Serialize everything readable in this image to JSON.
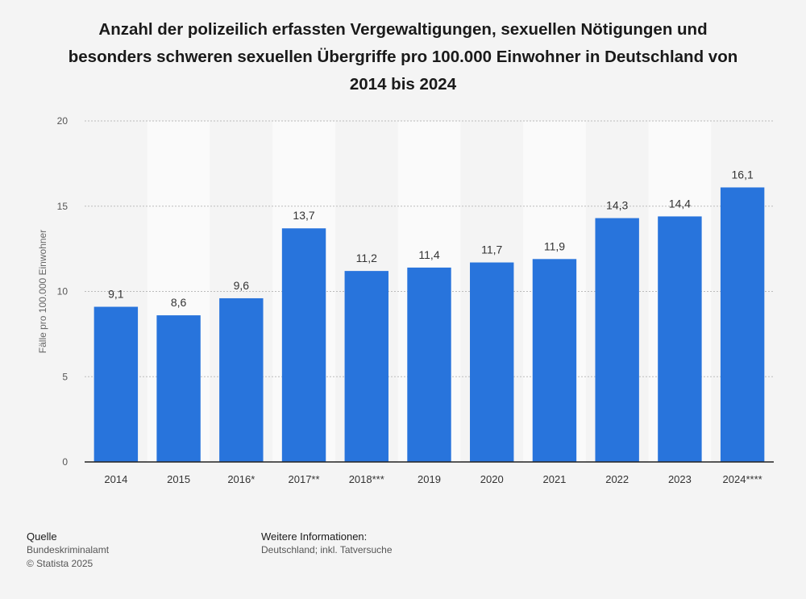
{
  "title_lines": [
    "Anzahl der polizeilich erfassten Vergewaltigungen, sexuellen Nötigungen und",
    "besonders schweren sexuellen Übergriffe pro 100.000 Einwohner in Deutschland von",
    "2014 bis 2024"
  ],
  "colors": {
    "bar": "#2874dc",
    "background": "#f4f4f4",
    "band": "#fafafa",
    "grid": "#bbbbbb"
  },
  "chart_data": {
    "type": "bar",
    "title": "Anzahl der polizeilich erfassten Vergewaltigungen, sexuellen Nötigungen und besonders schweren sexuellen Übergriffe pro 100.000 Einwohner in Deutschland von 2014 bis 2024",
    "categories": [
      "2014",
      "2015",
      "2016*",
      "2017**",
      "2018***",
      "2019",
      "2020",
      "2021",
      "2022",
      "2023",
      "2024****"
    ],
    "values": [
      9.1,
      8.6,
      9.6,
      13.7,
      11.2,
      11.4,
      11.7,
      11.9,
      14.3,
      14.4,
      16.1
    ],
    "value_labels": [
      "9,1",
      "8,6",
      "9,6",
      "13,7",
      "11,2",
      "11,4",
      "11,7",
      "11,9",
      "14,3",
      "14,4",
      "16,1"
    ],
    "xlabel": "",
    "ylabel": "Fälle pro 100.000 Einwohner",
    "ylim": [
      0,
      20
    ],
    "yticks": [
      0,
      5,
      10,
      15,
      20
    ],
    "grid": true
  },
  "footer": {
    "source_heading": "Quelle",
    "source_name": "Bundeskriminalamt",
    "copyright": "© Statista 2025",
    "info_heading": "Weitere Informationen:",
    "info_text": "Deutschland; inkl. Tatversuche"
  }
}
